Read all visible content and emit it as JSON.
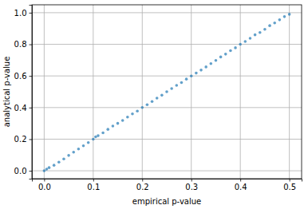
{
  "chart_data": {
    "type": "scatter",
    "x_label": "empirical p-value",
    "y_label": "analytical p-value",
    "x": [
      0,
      0.005,
      0.01,
      0.02,
      0.03,
      0.04,
      0.05,
      0.06,
      0.07,
      0.08,
      0.09,
      0.1,
      0.105,
      0.11,
      0.12,
      0.13,
      0.14,
      0.15,
      0.16,
      0.17,
      0.18,
      0.19,
      0.2,
      0.21,
      0.22,
      0.23,
      0.24,
      0.25,
      0.26,
      0.27,
      0.28,
      0.29,
      0.3,
      0.31,
      0.32,
      0.33,
      0.34,
      0.35,
      0.36,
      0.37,
      0.38,
      0.39,
      0.4,
      0.41,
      0.42,
      0.43,
      0.44,
      0.45,
      0.46,
      0.47,
      0.48,
      0.49,
      0.5
    ],
    "values": [
      0,
      0.01,
      0.02,
      0.035,
      0.055,
      0.075,
      0.097,
      0.118,
      0.138,
      0.158,
      0.178,
      0.2,
      0.215,
      0.222,
      0.24,
      0.262,
      0.283,
      0.3,
      0.318,
      0.34,
      0.36,
      0.378,
      0.4,
      0.418,
      0.438,
      0.46,
      0.478,
      0.5,
      0.52,
      0.54,
      0.558,
      0.58,
      0.6,
      0.618,
      0.637,
      0.657,
      0.678,
      0.698,
      0.72,
      0.738,
      0.76,
      0.778,
      0.8,
      0.818,
      0.838,
      0.86,
      0.875,
      0.895,
      0.918,
      0.935,
      0.955,
      0.975,
      0.99
    ],
    "color": "#1f77b4",
    "marker": "circle",
    "xlim": [
      -0.025,
      0.525
    ],
    "ylim": [
      -0.05,
      1.05
    ],
    "xticks": [
      {
        "value": 0,
        "label": "0.0"
      },
      0.1,
      0.2,
      0.3,
      0.4,
      0.5
    ],
    "yticks": [
      {
        "value": 0,
        "label": "0.0"
      },
      0.2,
      0.4,
      0.6,
      0.8,
      {
        "value": 1,
        "label": "1.0"
      }
    ],
    "grid": true
  }
}
